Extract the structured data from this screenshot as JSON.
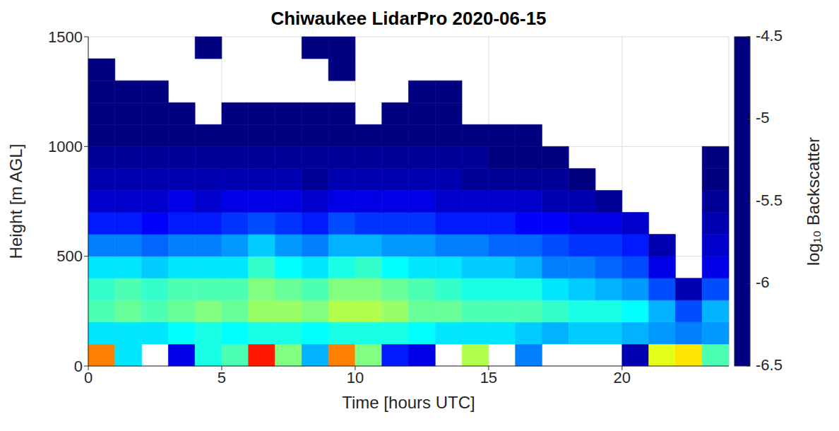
{
  "chart_data": {
    "type": "heatmap",
    "title": "Chiwaukee LidarPro 2020-06-15",
    "x_label": "Time [hours UTC]",
    "y_label": "Height [m AGL]",
    "xlim": [
      0,
      24
    ],
    "xticks": [
      0,
      5,
      10,
      15,
      20
    ],
    "ylim": [
      0,
      1500
    ],
    "yticks": [
      0,
      500,
      1000,
      1500
    ],
    "grid": true,
    "cells": {
      "x_edges": [
        0,
        1,
        2,
        3,
        4,
        5,
        6,
        7,
        8,
        9,
        10,
        11,
        12,
        13,
        14,
        15,
        16,
        17,
        18,
        19,
        20,
        21,
        22,
        23,
        24
      ],
      "y_edges": [
        0,
        100,
        200,
        300,
        400,
        500,
        600,
        700,
        800,
        900,
        1000,
        1100,
        1200,
        1300,
        1400,
        1500
      ],
      "values": [
        [
          -5.0,
          -5.8,
          null,
          -6.3,
          -5.7,
          -5.6,
          -4.8,
          -5.5,
          -5.9,
          -5.0,
          -5.5,
          -6.2,
          -6.3,
          null,
          -5.4,
          null,
          -6.0,
          null,
          null,
          null,
          -6.4,
          -5.3,
          -5.2,
          -5.6
        ],
        [
          -5.8,
          -5.8,
          -5.8,
          -5.75,
          -5.7,
          -5.75,
          -5.7,
          -5.7,
          -5.75,
          -5.7,
          -5.7,
          -5.7,
          -5.75,
          -5.8,
          -5.8,
          -5.8,
          -5.85,
          -5.9,
          -5.85,
          -5.85,
          -5.9,
          -5.95,
          -6.0,
          -5.95
        ],
        [
          -5.6,
          -5.55,
          -5.6,
          -5.55,
          -5.5,
          -5.55,
          -5.45,
          -5.45,
          -5.5,
          -5.4,
          -5.4,
          -5.45,
          -5.55,
          -5.55,
          -5.6,
          -5.6,
          -5.6,
          -5.65,
          -5.7,
          -5.7,
          -5.75,
          -5.9,
          -6.1,
          -5.9
        ],
        [
          -5.65,
          -5.6,
          -5.65,
          -5.6,
          -5.6,
          -5.6,
          -5.5,
          -5.55,
          -5.6,
          -5.5,
          -5.5,
          -5.55,
          -5.6,
          -5.65,
          -5.7,
          -5.7,
          -5.7,
          -5.8,
          -5.85,
          -5.9,
          -5.95,
          -6.1,
          -6.4,
          -6.1
        ],
        [
          -5.8,
          -5.8,
          -5.85,
          -5.8,
          -5.8,
          -5.8,
          -5.65,
          -5.75,
          -5.8,
          -5.7,
          -5.65,
          -5.75,
          -5.8,
          -5.8,
          -5.85,
          -5.85,
          -5.9,
          -6.0,
          -6.0,
          -6.05,
          -6.1,
          -6.3,
          null,
          -6.3
        ],
        [
          -6.0,
          -6.0,
          -6.05,
          -6.0,
          -6.0,
          -5.95,
          -5.85,
          -5.95,
          -6.0,
          -5.9,
          -5.9,
          -5.95,
          -5.95,
          -6.0,
          -6.0,
          -6.05,
          -6.05,
          -6.1,
          -6.15,
          -6.15,
          -6.2,
          -6.4,
          null,
          -6.35
        ],
        [
          -6.2,
          -6.2,
          -6.25,
          -6.2,
          -6.2,
          -6.15,
          -6.1,
          -6.15,
          -6.2,
          -6.1,
          -6.15,
          -6.15,
          -6.15,
          -6.2,
          -6.2,
          -6.2,
          -6.25,
          -6.25,
          -6.3,
          -6.3,
          -6.35,
          null,
          null,
          -6.4
        ],
        [
          -6.35,
          -6.35,
          -6.35,
          -6.3,
          -6.35,
          -6.3,
          -6.3,
          -6.3,
          -6.35,
          -6.3,
          -6.3,
          -6.3,
          -6.3,
          -6.35,
          -6.35,
          -6.35,
          -6.35,
          -6.4,
          -6.4,
          -6.45,
          null,
          null,
          null,
          -6.45
        ],
        [
          -6.4,
          -6.4,
          -6.4,
          -6.4,
          -6.4,
          -6.4,
          -6.4,
          -6.4,
          -6.45,
          -6.4,
          -6.4,
          -6.4,
          -6.4,
          -6.4,
          -6.45,
          -6.45,
          -6.45,
          -6.45,
          -6.5,
          null,
          null,
          null,
          null,
          -6.5
        ],
        [
          -6.45,
          -6.45,
          -6.45,
          -6.45,
          -6.45,
          -6.45,
          -6.45,
          -6.45,
          -6.45,
          -6.45,
          -6.45,
          -6.45,
          -6.45,
          -6.45,
          -6.45,
          -6.5,
          -6.5,
          -6.5,
          null,
          null,
          null,
          null,
          null,
          -6.5
        ],
        [
          -6.5,
          -6.5,
          -6.5,
          -6.5,
          -6.5,
          -6.5,
          -6.5,
          -6.5,
          -6.5,
          -6.5,
          -6.5,
          -6.5,
          -6.5,
          -6.5,
          -6.5,
          -6.5,
          -6.5,
          null,
          null,
          null,
          null,
          null,
          null,
          null
        ],
        [
          -6.5,
          -6.5,
          -6.5,
          -6.5,
          null,
          -6.5,
          -6.5,
          -6.5,
          -6.5,
          -6.5,
          null,
          -6.5,
          -6.5,
          -6.5,
          null,
          null,
          null,
          null,
          null,
          null,
          null,
          null,
          null,
          null
        ],
        [
          -6.5,
          -6.5,
          -6.5,
          null,
          null,
          null,
          null,
          null,
          null,
          null,
          null,
          null,
          -6.5,
          -6.5,
          null,
          null,
          null,
          null,
          null,
          null,
          null,
          null,
          null,
          null
        ],
        [
          -6.5,
          null,
          null,
          null,
          null,
          null,
          null,
          null,
          null,
          -6.5,
          null,
          null,
          null,
          null,
          null,
          null,
          null,
          null,
          null,
          null,
          null,
          null,
          null,
          null
        ],
        [
          null,
          null,
          null,
          null,
          -6.5,
          null,
          null,
          null,
          -6.5,
          -6.5,
          null,
          null,
          null,
          null,
          null,
          null,
          null,
          null,
          null,
          null,
          null,
          null,
          null,
          null
        ]
      ]
    },
    "colorbar": {
      "label": "log₁₀ Backscatter",
      "range": [
        -6.5,
        -4.5
      ],
      "ticks": [
        -6.5,
        -6,
        -5.5,
        -5,
        -4.5
      ]
    }
  }
}
